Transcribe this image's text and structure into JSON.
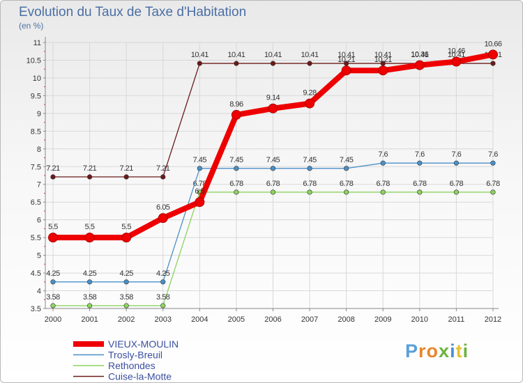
{
  "brand": {
    "letters": [
      "P",
      "r",
      "o",
      "x",
      "i",
      "t",
      "i"
    ],
    "colors": [
      "#5aa0d8",
      "#e8862b",
      "#e8862b",
      "#6cb33f",
      "#4a90d9",
      "#e8c22b",
      "#6cb33f"
    ]
  },
  "chart_data": {
    "type": "line",
    "title": "Evolution du Taux de Taxe d'Habitation",
    "subtitle": "(en %)",
    "xlabel": "",
    "ylabel": "",
    "ylim": [
      3.5,
      11
    ],
    "yticks": [
      "3.5",
      "4",
      "4.5",
      "5",
      "5.5",
      "6",
      "6.5",
      "7",
      "7.5",
      "8",
      "8.5",
      "9",
      "9.5",
      "10",
      "10.5",
      "11"
    ],
    "x": [
      "2000",
      "2001",
      "2002",
      "2003",
      "2004",
      "2005",
      "2006",
      "2007",
      "2008",
      "2009",
      "2010",
      "2011",
      "2012"
    ],
    "grid": true,
    "legend": "bottom-left",
    "series": [
      {
        "name": "Cuise-la-Motte",
        "color": "#6b1a1a",
        "width": "thin",
        "values": [
          7.21,
          7.21,
          7.21,
          7.21,
          10.41,
          10.41,
          10.41,
          10.41,
          10.41,
          10.41,
          10.41,
          10.41,
          10.41
        ],
        "labels": [
          "7.21",
          "7.21",
          "7.21",
          "7.21",
          "10.41",
          "10.41",
          "10.41",
          "10.41",
          "10.41",
          "10.41",
          "10.41",
          "10.41",
          "10.41"
        ]
      },
      {
        "name": "Rethondes",
        "color": "#8dd35f",
        "width": "thin",
        "values": [
          3.58,
          3.58,
          3.58,
          3.58,
          6.78,
          6.78,
          6.78,
          6.78,
          6.78,
          6.78,
          6.78,
          6.78,
          6.78
        ],
        "labels": [
          "3.58",
          "3.58",
          "3.58",
          "3.58",
          "6.78",
          "6.78",
          "6.78",
          "6.78",
          "6.78",
          "6.78",
          "6.78",
          "6.78",
          "6.78"
        ]
      },
      {
        "name": "Trosly-Breuil",
        "color": "#4a90c8",
        "width": "thin",
        "values": [
          4.25,
          4.25,
          4.25,
          4.25,
          7.45,
          7.45,
          7.45,
          7.45,
          7.45,
          7.6,
          7.6,
          7.6,
          7.6
        ],
        "labels": [
          "4.25",
          "4.25",
          "4.25",
          "4.25",
          "7.45",
          "7.45",
          "7.45",
          "7.45",
          "7.45",
          "7.6",
          "7.6",
          "7.6",
          "7.6"
        ]
      },
      {
        "name": "VIEUX-MOULIN",
        "color": "#ee0000",
        "width": "thick",
        "values": [
          5.5,
          5.5,
          5.5,
          6.05,
          6.5,
          8.96,
          9.14,
          9.28,
          10.21,
          10.21,
          10.36,
          10.46,
          10.66
        ],
        "labels": [
          "5.5",
          "5.5",
          "5.5",
          "6.05",
          "6.5",
          "8.96",
          "9.14",
          "9.28",
          "10.21",
          "10.21",
          "10.36",
          "10.46",
          "10.66"
        ]
      }
    ],
    "legend_entries": [
      {
        "name": "VIEUX-MOULIN",
        "color": "#ee0000"
      },
      {
        "name": "Trosly-Breuil",
        "color": "#4a90c8"
      },
      {
        "name": "Rethondes",
        "color": "#8dd35f"
      },
      {
        "name": "Cuise-la-Motte",
        "color": "#6b1a1a"
      }
    ]
  }
}
